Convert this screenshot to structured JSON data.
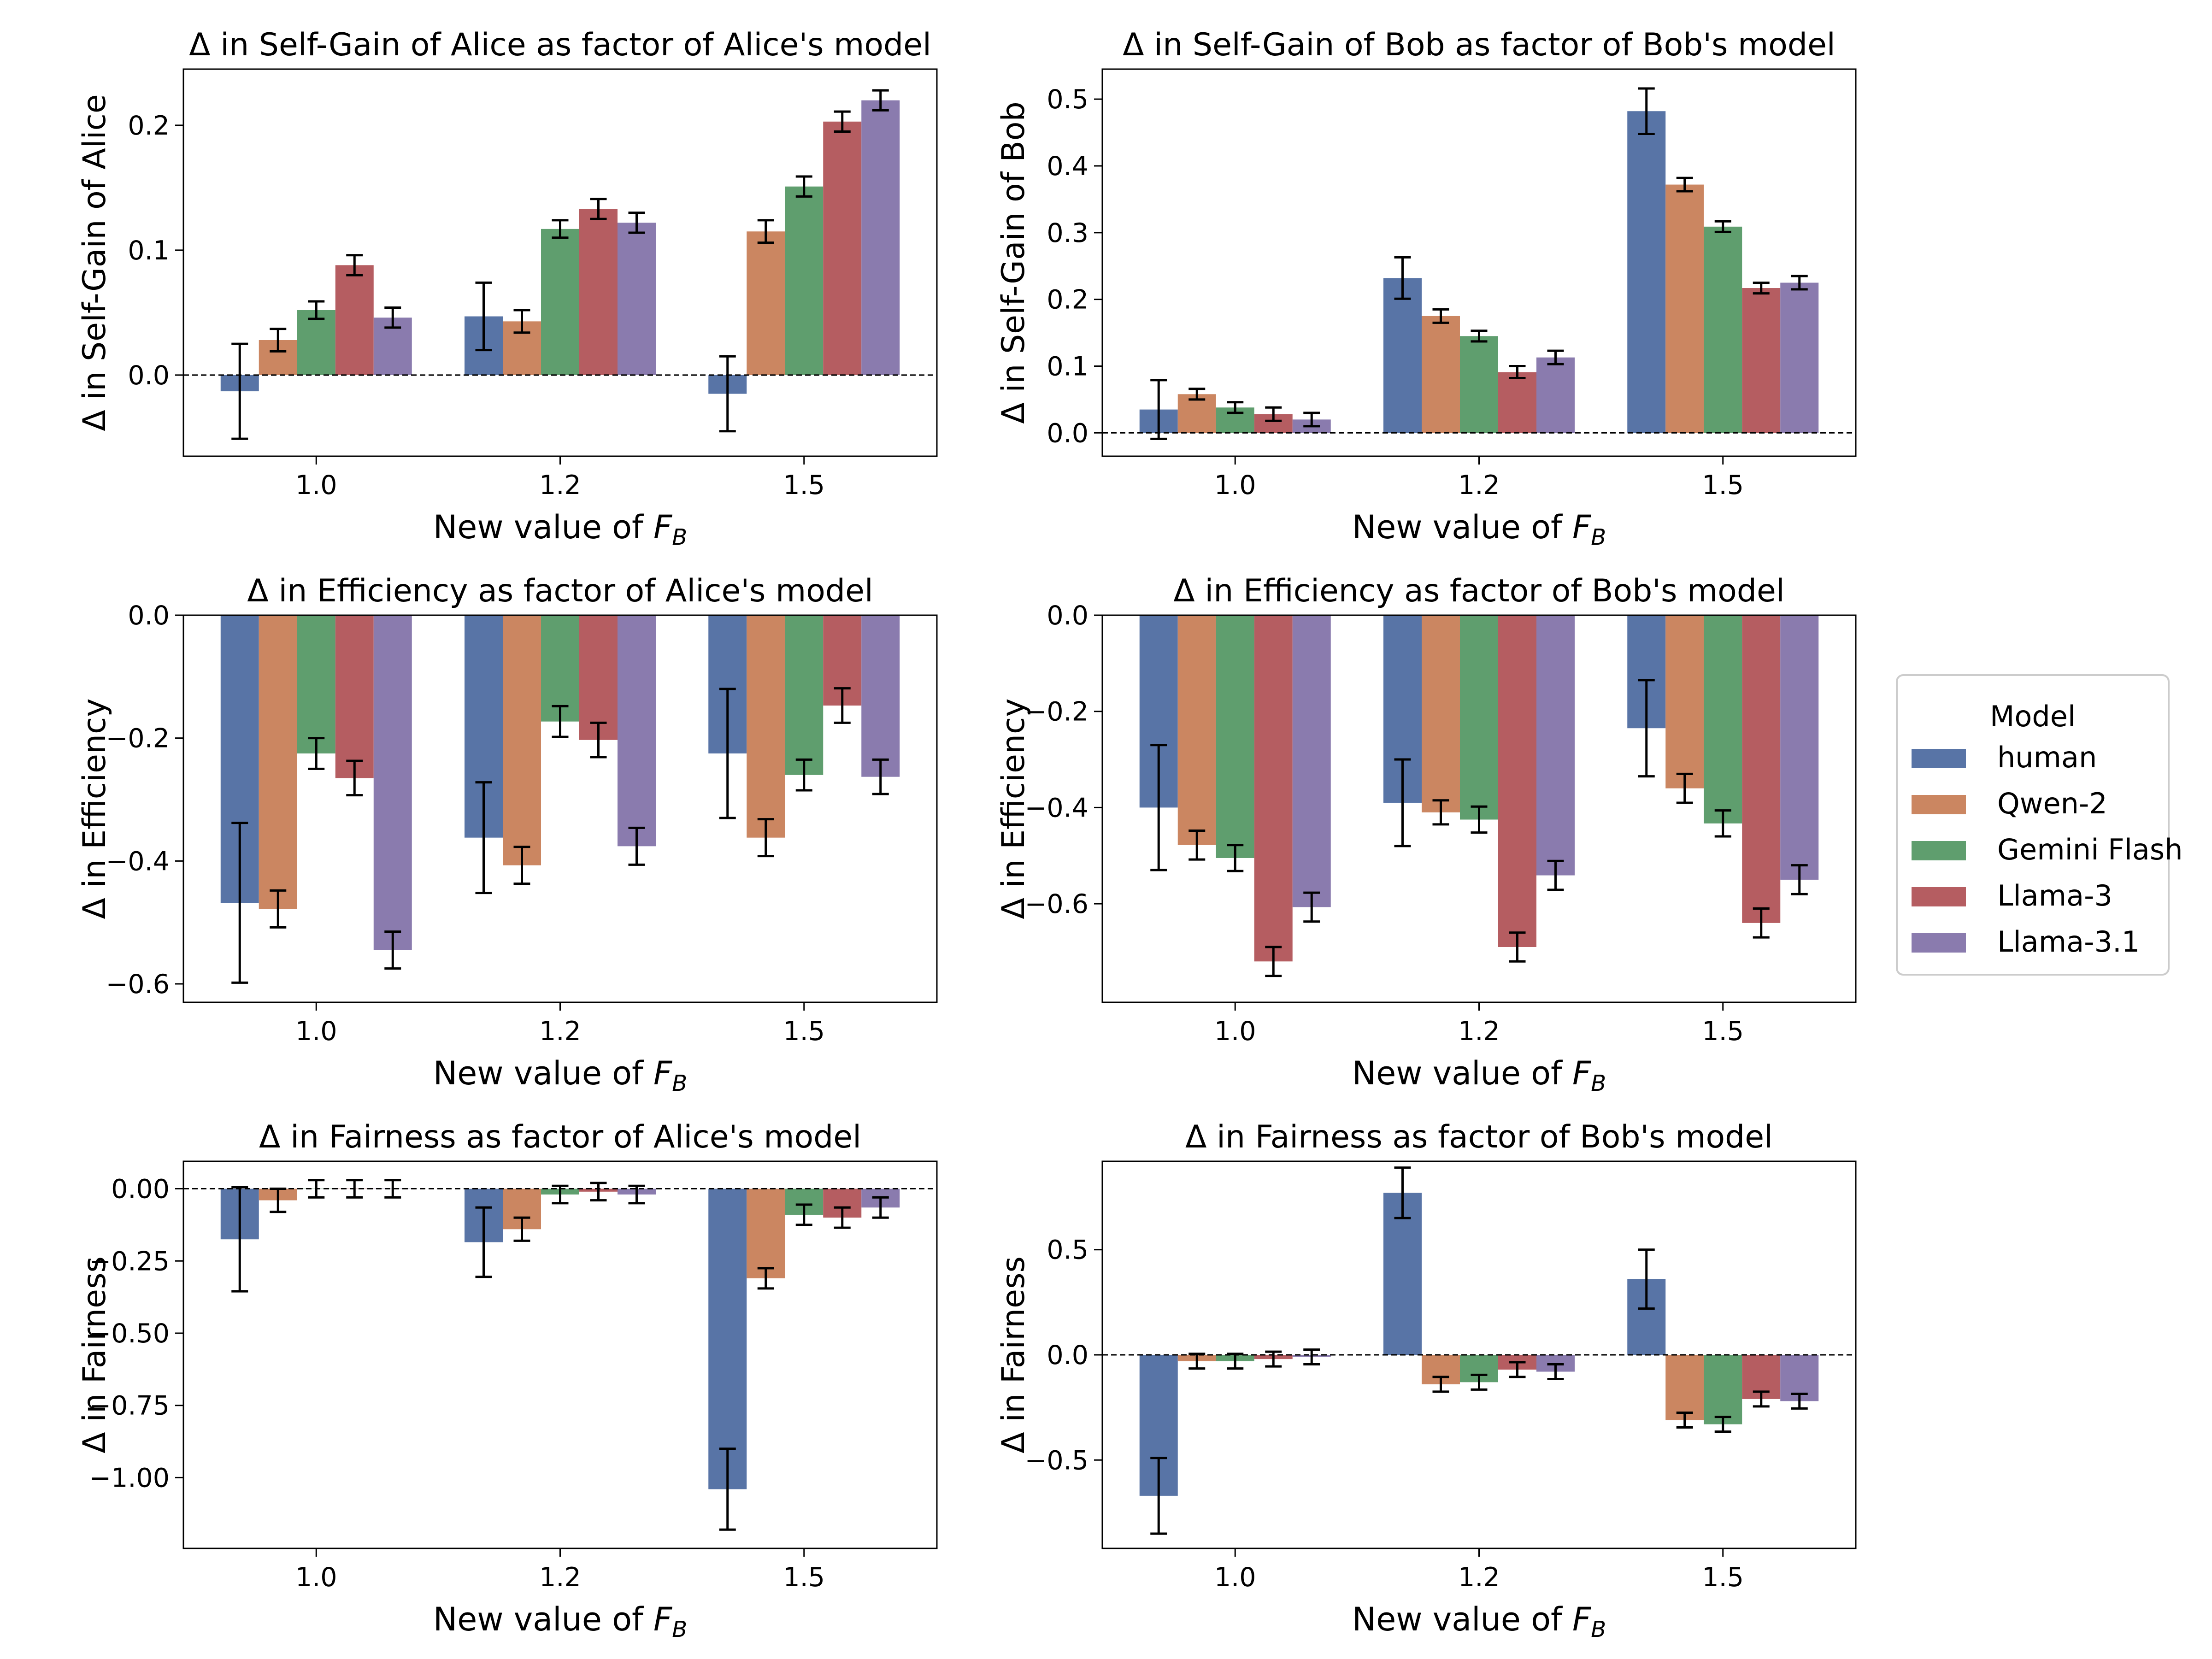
{
  "legend": {
    "title": "Model",
    "placement": "center-right",
    "entries": [
      "human",
      "Qwen-2",
      "Gemini Flash",
      "Llama-3",
      "Llama-3.1"
    ]
  },
  "colors": {
    "human": "#5874a6",
    "Qwen-2": "#cb8661",
    "Gemini Flash": "#5f9e6e",
    "Llama-3": "#b55d61",
    "Llama-3.1": "#8a7bae"
  },
  "xlabel_prefix": "New value of ",
  "xlabel_symbol": "F",
  "xlabel_subscript": "B",
  "chart_data": [
    {
      "type": "bar",
      "title": "Δ in Self-Gain of Alice as factor of Alice's model",
      "ylabel": "Δ in Self-Gain of Alice",
      "categories": [
        "1.0",
        "1.2",
        "1.5"
      ],
      "ylim": [
        -0.065,
        0.245
      ],
      "yticks": [
        0.0,
        0.1,
        0.2
      ],
      "ytick_labels": [
        "0.0",
        "0.1",
        "0.2"
      ],
      "zero_line": true,
      "series": [
        {
          "name": "human",
          "values": [
            -0.013,
            0.047,
            -0.015
          ],
          "err": [
            0.038,
            0.027,
            0.03
          ]
        },
        {
          "name": "Qwen-2",
          "values": [
            0.028,
            0.043,
            0.115
          ],
          "err": [
            0.009,
            0.009,
            0.009
          ]
        },
        {
          "name": "Gemini Flash",
          "values": [
            0.052,
            0.117,
            0.151
          ],
          "err": [
            0.007,
            0.007,
            0.008
          ]
        },
        {
          "name": "Llama-3",
          "values": [
            0.088,
            0.133,
            0.203
          ],
          "err": [
            0.008,
            0.008,
            0.008
          ]
        },
        {
          "name": "Llama-3.1",
          "values": [
            0.046,
            0.122,
            0.22
          ],
          "err": [
            0.008,
            0.008,
            0.008
          ]
        }
      ]
    },
    {
      "type": "bar",
      "title": "Δ in Self-Gain of Bob as factor of Bob's model",
      "ylabel": "Δ in Self-Gain of Bob",
      "categories": [
        "1.0",
        "1.2",
        "1.5"
      ],
      "ylim": [
        -0.035,
        0.545
      ],
      "yticks": [
        0.0,
        0.1,
        0.2,
        0.3,
        0.4,
        0.5
      ],
      "ytick_labels": [
        "0.0",
        "0.1",
        "0.2",
        "0.3",
        "0.4",
        "0.5"
      ],
      "zero_line": true,
      "series": [
        {
          "name": "human",
          "values": [
            0.035,
            0.232,
            0.482
          ],
          "err": [
            0.044,
            0.031,
            0.034
          ]
        },
        {
          "name": "Qwen-2",
          "values": [
            0.058,
            0.175,
            0.372
          ],
          "err": [
            0.008,
            0.01,
            0.01
          ]
        },
        {
          "name": "Gemini Flash",
          "values": [
            0.038,
            0.145,
            0.309
          ],
          "err": [
            0.008,
            0.008,
            0.008
          ]
        },
        {
          "name": "Llama-3",
          "values": [
            0.028,
            0.091,
            0.217
          ],
          "err": [
            0.01,
            0.009,
            0.008
          ]
        },
        {
          "name": "Llama-3.1",
          "values": [
            0.02,
            0.113,
            0.225
          ],
          "err": [
            0.01,
            0.01,
            0.01
          ]
        }
      ]
    },
    {
      "type": "bar",
      "title": "Δ in Efficiency as factor of Alice's model",
      "ylabel": "Δ in Efficiency",
      "categories": [
        "1.0",
        "1.2",
        "1.5"
      ],
      "ylim": [
        -0.63,
        0.0
      ],
      "yticks": [
        0.0,
        -0.2,
        -0.4,
        -0.6
      ],
      "ytick_labels": [
        "0.0",
        "−0.2",
        "−0.4",
        "−0.6"
      ],
      "zero_line": false,
      "series": [
        {
          "name": "human",
          "values": [
            -0.468,
            -0.362,
            -0.225
          ],
          "err": [
            0.13,
            0.09,
            0.105
          ]
        },
        {
          "name": "Qwen-2",
          "values": [
            -0.478,
            -0.407,
            -0.362
          ],
          "err": [
            0.03,
            0.03,
            0.03
          ]
        },
        {
          "name": "Gemini Flash",
          "values": [
            -0.225,
            -0.173,
            -0.26
          ],
          "err": [
            0.025,
            0.025,
            0.025
          ]
        },
        {
          "name": "Llama-3",
          "values": [
            -0.265,
            -0.203,
            -0.147
          ],
          "err": [
            0.028,
            0.028,
            0.028
          ]
        },
        {
          "name": "Llama-3.1",
          "values": [
            -0.545,
            -0.376,
            -0.263
          ],
          "err": [
            0.03,
            0.03,
            0.028
          ]
        }
      ]
    },
    {
      "type": "bar",
      "title": "Δ in Efficiency as factor of Bob's model",
      "ylabel": "Δ in Efficiency",
      "categories": [
        "1.0",
        "1.2",
        "1.5"
      ],
      "ylim": [
        -0.805,
        0.0
      ],
      "yticks": [
        0.0,
        -0.2,
        -0.4,
        -0.6
      ],
      "ytick_labels": [
        "0.0",
        "−0.2",
        "−0.4",
        "−0.6"
      ],
      "zero_line": false,
      "series": [
        {
          "name": "human",
          "values": [
            -0.4,
            -0.39,
            -0.235
          ],
          "err": [
            0.13,
            0.09,
            0.1
          ]
        },
        {
          "name": "Qwen-2",
          "values": [
            -0.478,
            -0.41,
            -0.36
          ],
          "err": [
            0.03,
            0.025,
            0.03
          ]
        },
        {
          "name": "Gemini Flash",
          "values": [
            -0.505,
            -0.425,
            -0.433
          ],
          "err": [
            0.027,
            0.027,
            0.027
          ]
        },
        {
          "name": "Llama-3",
          "values": [
            -0.72,
            -0.69,
            -0.64
          ],
          "err": [
            0.03,
            0.03,
            0.03
          ]
        },
        {
          "name": "Llama-3.1",
          "values": [
            -0.607,
            -0.541,
            -0.55
          ],
          "err": [
            0.03,
            0.03,
            0.03
          ]
        }
      ]
    },
    {
      "type": "bar",
      "title": "Δ in Fairness as factor of Alice's model",
      "ylabel": "Δ in Fairness",
      "categories": [
        "1.0",
        "1.2",
        "1.5"
      ],
      "ylim": [
        -1.245,
        0.095
      ],
      "yticks": [
        0.0,
        -0.25,
        -0.5,
        -0.75,
        -1.0
      ],
      "ytick_labels": [
        "0.00",
        "−0.25",
        "−0.50",
        "−0.75",
        "−1.00"
      ],
      "zero_line": true,
      "series": [
        {
          "name": "human",
          "values": [
            -0.175,
            -0.185,
            -1.04
          ],
          "err": [
            0.18,
            0.12,
            0.14
          ]
        },
        {
          "name": "Qwen-2",
          "values": [
            -0.04,
            -0.14,
            -0.31
          ],
          "err": [
            0.04,
            0.04,
            0.035
          ]
        },
        {
          "name": "Gemini Flash",
          "values": [
            0.0,
            -0.02,
            -0.09
          ],
          "err": [
            0.03,
            0.03,
            0.035
          ]
        },
        {
          "name": "Llama-3",
          "values": [
            0.0,
            -0.01,
            -0.1
          ],
          "err": [
            0.03,
            0.03,
            0.035
          ]
        },
        {
          "name": "Llama-3.1",
          "values": [
            0.0,
            -0.02,
            -0.065
          ],
          "err": [
            0.03,
            0.03,
            0.035
          ]
        }
      ]
    },
    {
      "type": "bar",
      "title": "Δ in Fairness as factor of Bob's model",
      "ylabel": "Δ in Fairness",
      "categories": [
        "1.0",
        "1.2",
        "1.5"
      ],
      "ylim": [
        -0.92,
        0.92
      ],
      "yticks": [
        0.5,
        0.0,
        -0.5
      ],
      "ytick_labels": [
        "0.5",
        "0.0",
        "−0.5"
      ],
      "zero_line": true,
      "series": [
        {
          "name": "human",
          "values": [
            -0.67,
            0.77,
            0.36
          ],
          "err": [
            0.18,
            0.12,
            0.14
          ]
        },
        {
          "name": "Qwen-2",
          "values": [
            -0.03,
            -0.14,
            -0.31
          ],
          "err": [
            0.035,
            0.035,
            0.035
          ]
        },
        {
          "name": "Gemini Flash",
          "values": [
            -0.03,
            -0.13,
            -0.33
          ],
          "err": [
            0.035,
            0.035,
            0.035
          ]
        },
        {
          "name": "Llama-3",
          "values": [
            -0.02,
            -0.07,
            -0.21
          ],
          "err": [
            0.035,
            0.035,
            0.035
          ]
        },
        {
          "name": "Llama-3.1",
          "values": [
            -0.01,
            -0.08,
            -0.22
          ],
          "err": [
            0.035,
            0.035,
            0.035
          ]
        }
      ]
    }
  ]
}
